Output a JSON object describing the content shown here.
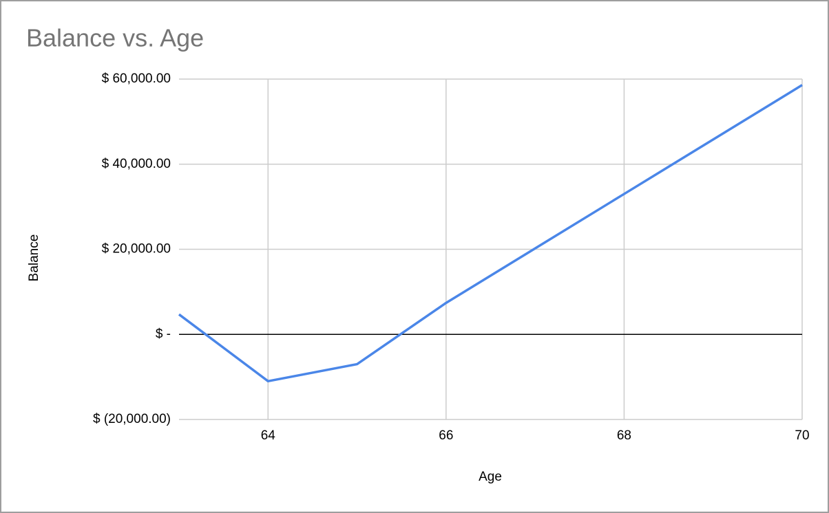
{
  "chart_data": {
    "type": "line",
    "title": "Balance vs. Age",
    "x_label": "Age",
    "y_label": "Balance",
    "x": [
      63,
      64,
      65,
      66,
      67,
      68,
      69,
      70
    ],
    "series": [
      {
        "name": "Balance",
        "color": "#4a86e8",
        "values": [
          4700,
          -11000,
          -7000,
          7400,
          20200,
          33000,
          45800,
          58600
        ]
      }
    ],
    "xlim": [
      63,
      70
    ],
    "xticks": [
      64,
      66,
      68,
      70
    ],
    "ylim": [
      -20000,
      60000
    ],
    "yticks": [
      {
        "value": -20000,
        "label": "$ (20,000.00)"
      },
      {
        "value": 0,
        "label": "$ -"
      },
      {
        "value": 20000,
        "label": "$ 20,000.00"
      },
      {
        "value": 40000,
        "label": "$ 40,000.00"
      },
      {
        "value": 60000,
        "label": "$ 60,000.00"
      }
    ],
    "grid": true
  }
}
